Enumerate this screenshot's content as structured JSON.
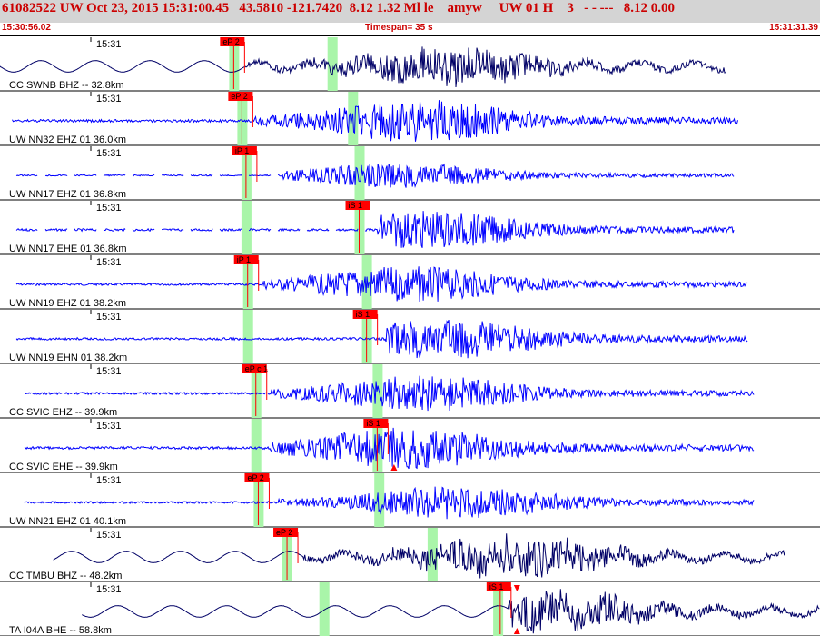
{
  "header": {
    "title": "61082522 UW Oct 23, 2015 15:31:00.45   43.5810 -121.7420  8.12 1.32 Ml le    amyw     UW 01 H    3   - - ---   8.12 0.00",
    "start_time": "15:30:56.02",
    "timespan": "Timespan=  35 s",
    "end_time": "15:31:31.39"
  },
  "colors": {
    "header_bg": "#d4d4d4",
    "header_text": "#cc0000",
    "pick_red": "#ff0000",
    "green_marker": "#a9f5a9",
    "trace_blue": "#0000ff",
    "trace_navy": "#000066"
  },
  "traces": [
    {
      "label": "CC SWNB BHZ -- 32.8km",
      "time": "15:31",
      "pick": "eP 2",
      "pick_t": 0.285,
      "markers": [
        0.285,
        0.405
      ],
      "start": 0.0,
      "end": 0.885,
      "color": "navy",
      "style": "sine",
      "arrival": 0.3,
      "peak": 0.55,
      "amp": 0.9,
      "gaps": false,
      "tri_top": false,
      "tri_bottom": false
    },
    {
      "label": "UW NN32 EHZ 01 36.0km",
      "time": "15:31",
      "pick": "eP 2",
      "pick_t": 0.295,
      "markers": [
        0.295,
        0.43
      ],
      "start": 0.015,
      "end": 0.9,
      "color": "blue",
      "style": "noise",
      "arrival": 0.31,
      "peak": 0.51,
      "amp": 0.95,
      "gaps": false,
      "tri_top": false,
      "tri_bottom": false
    },
    {
      "label": "UW NN17 EHZ 01 36.8km",
      "time": "15:31",
      "pick": "iP 1",
      "pick_t": 0.3,
      "markers": [
        0.3,
        0.438
      ],
      "start": 0.02,
      "end": 0.895,
      "color": "blue",
      "style": "noise",
      "arrival": 0.345,
      "peak": 0.49,
      "amp": 0.55,
      "gaps": true,
      "tri_top": false,
      "tri_bottom": false
    },
    {
      "label": "UW NN17 EHE 01 36.8km",
      "time": "15:31",
      "pick": "iS 1",
      "pick_t": 0.438,
      "markers": [
        0.3,
        0.438
      ],
      "start": 0.02,
      "end": 0.895,
      "color": "blue",
      "style": "noise",
      "arrival": 0.46,
      "peak": 0.52,
      "amp": 0.85,
      "gaps": true,
      "tri_top": false,
      "tri_bottom": false
    },
    {
      "label": "UW NN19 EHZ 01 38.2km",
      "time": "15:31",
      "pick": "iP 1",
      "pick_t": 0.302,
      "markers": [
        0.302,
        0.447
      ],
      "start": 0.02,
      "end": 0.912,
      "color": "blue",
      "style": "noise",
      "arrival": 0.32,
      "peak": 0.5,
      "amp": 0.8,
      "gaps": false,
      "tri_top": false,
      "tri_bottom": false
    },
    {
      "label": "UW NN19 EHN 01 38.2km",
      "time": "15:31",
      "pick": "iS 1",
      "pick_t": 0.447,
      "markers": [
        0.302,
        0.447
      ],
      "start": 0.02,
      "end": 0.912,
      "color": "blue",
      "style": "noise",
      "arrival": 0.47,
      "peak": 0.54,
      "amp": 0.9,
      "gaps": false,
      "tri_top": false,
      "tri_bottom": false
    },
    {
      "label": "CC SVIC EHZ -- 39.9km",
      "time": "15:31",
      "pick": "eP c 1",
      "pick_t": 0.312,
      "markers": [
        0.312,
        0.46
      ],
      "start": 0.03,
      "end": 0.92,
      "color": "blue",
      "style": "noise",
      "arrival": 0.33,
      "peak": 0.52,
      "amp": 0.8,
      "gaps": false,
      "tri_top": false,
      "tri_bottom": false
    },
    {
      "label": "CC SVIC EHE -- 39.9km",
      "time": "15:31",
      "pick": "iS 1",
      "pick_t": 0.46,
      "markers": [
        0.312,
        0.46
      ],
      "start": 0.03,
      "end": 0.92,
      "color": "blue",
      "style": "noise",
      "arrival": 0.33,
      "peak": 0.5,
      "amp": 0.95,
      "gaps": false,
      "tri_top": false,
      "tri_bottom": true
    },
    {
      "label": "UW NN21 EHZ 01 40.1km",
      "time": "15:31",
      "pick": "eP 2",
      "pick_t": 0.315,
      "markers": [
        0.315,
        0.462
      ],
      "start": 0.03,
      "end": 0.92,
      "color": "blue",
      "style": "noise",
      "arrival": 0.34,
      "peak": 0.56,
      "amp": 0.75,
      "gaps": false,
      "tri_top": false,
      "tri_bottom": false
    },
    {
      "label": "CC TMBU BHZ -- 48.2km",
      "time": "15:31",
      "pick": "eP 2",
      "pick_t": 0.35,
      "markers": [
        0.35,
        0.527
      ],
      "start": 0.065,
      "end": 0.958,
      "color": "navy",
      "style": "sine",
      "arrival": 0.37,
      "peak": 0.63,
      "amp": 1.0,
      "gaps": false,
      "tri_top": false,
      "tri_bottom": false
    },
    {
      "label": "TA I04A BHE -- 58.8km",
      "time": "15:31",
      "pick": "iS 1",
      "pick_t": 0.61,
      "markers": [
        0.395,
        0.607
      ],
      "start": 0.1,
      "end": 1.0,
      "color": "navy",
      "style": "sine",
      "arrival": 0.62,
      "peak": 0.67,
      "amp": 1.0,
      "gaps": false,
      "tri_top": true,
      "tri_bottom": true
    }
  ]
}
